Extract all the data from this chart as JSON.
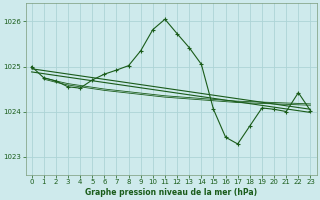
{
  "title": "Graphe pression niveau de la mer (hPa)",
  "bg_color": "#ceeaec",
  "grid_color": "#add4d6",
  "line_color": "#1a5c1a",
  "spine_color": "#7a9a7a",
  "ylim": [
    1022.6,
    1026.4
  ],
  "yticks": [
    1023,
    1024,
    1025,
    1026
  ],
  "xlim": [
    -0.5,
    23.5
  ],
  "xticks": [
    0,
    1,
    2,
    3,
    4,
    5,
    6,
    7,
    8,
    9,
    10,
    11,
    12,
    13,
    14,
    15,
    16,
    17,
    18,
    19,
    20,
    21,
    22,
    23
  ],
  "trend1_x": [
    0,
    23
  ],
  "trend1_y": [
    1024.95,
    1024.05
  ],
  "trend2_x": [
    0,
    23
  ],
  "trend2_y": [
    1024.88,
    1023.98
  ],
  "flat1_x": [
    1,
    2,
    3,
    4,
    5,
    6,
    7,
    8,
    9,
    10,
    11,
    12,
    13,
    14,
    15,
    16,
    17,
    18,
    19,
    20,
    21,
    22,
    23
  ],
  "flat1_y": [
    1024.75,
    1024.68,
    1024.62,
    1024.58,
    1024.54,
    1024.5,
    1024.47,
    1024.44,
    1024.41,
    1024.38,
    1024.35,
    1024.33,
    1024.31,
    1024.29,
    1024.27,
    1024.25,
    1024.23,
    1024.22,
    1024.21,
    1024.2,
    1024.19,
    1024.18,
    1024.17
  ],
  "flat2_x": [
    1,
    2,
    3,
    4,
    5,
    6,
    7,
    8,
    9,
    10,
    11,
    12,
    13,
    14,
    15,
    16,
    17,
    18,
    19,
    20,
    21,
    22,
    23
  ],
  "flat2_y": [
    1024.72,
    1024.65,
    1024.59,
    1024.55,
    1024.51,
    1024.47,
    1024.44,
    1024.41,
    1024.38,
    1024.35,
    1024.32,
    1024.3,
    1024.28,
    1024.26,
    1024.24,
    1024.22,
    1024.2,
    1024.19,
    1024.18,
    1024.17,
    1024.16,
    1024.15,
    1024.14
  ],
  "main_x": [
    0,
    1,
    2,
    3,
    4,
    5,
    6,
    7,
    8,
    9,
    10,
    11,
    12,
    13,
    14,
    15,
    16,
    17,
    18,
    19,
    20,
    21,
    22,
    23
  ],
  "main_y": [
    1025.0,
    1024.75,
    1024.68,
    1024.55,
    1024.52,
    1024.7,
    1024.83,
    1024.92,
    1025.02,
    1025.35,
    1025.82,
    1026.05,
    1025.73,
    1025.42,
    1025.05,
    1024.05,
    1023.43,
    1023.28,
    1023.68,
    1024.08,
    1024.05,
    1024.0,
    1024.42,
    1024.02
  ]
}
